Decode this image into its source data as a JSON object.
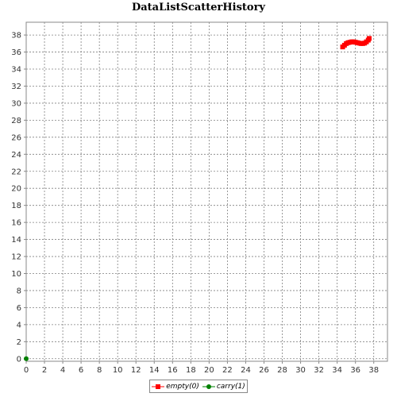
{
  "chart_data": {
    "type": "scatter",
    "title": "DataListScatterHistory",
    "xlabel": "",
    "ylabel": "",
    "xlim": [
      0,
      39.5
    ],
    "ylim": [
      -0.3,
      39.5
    ],
    "xticks": [
      0,
      2,
      4,
      6,
      8,
      10,
      12,
      14,
      16,
      18,
      20,
      22,
      24,
      26,
      28,
      30,
      32,
      34,
      36,
      38
    ],
    "yticks": [
      0,
      2,
      4,
      6,
      8,
      10,
      12,
      14,
      16,
      18,
      20,
      22,
      24,
      26,
      28,
      30,
      32,
      34,
      36,
      38
    ],
    "grid": true,
    "legend_position": "bottom",
    "series": [
      {
        "name": "empty(0)",
        "color": "#ff0000",
        "marker": "square",
        "points": [
          [
            34.6,
            36.6
          ],
          [
            34.8,
            36.8
          ],
          [
            35.0,
            37.0
          ],
          [
            35.2,
            37.1
          ],
          [
            35.4,
            37.15
          ],
          [
            35.6,
            37.2
          ],
          [
            35.8,
            37.2
          ],
          [
            36.0,
            37.15
          ],
          [
            36.2,
            37.1
          ],
          [
            36.4,
            37.05
          ],
          [
            36.6,
            37.0
          ],
          [
            36.8,
            37.0
          ],
          [
            37.0,
            37.05
          ],
          [
            37.2,
            37.2
          ],
          [
            37.4,
            37.4
          ],
          [
            37.5,
            37.6
          ]
        ]
      },
      {
        "name": "carry(1)",
        "color": "#008000",
        "marker": "circle",
        "points": [
          [
            0,
            0
          ]
        ]
      }
    ]
  }
}
